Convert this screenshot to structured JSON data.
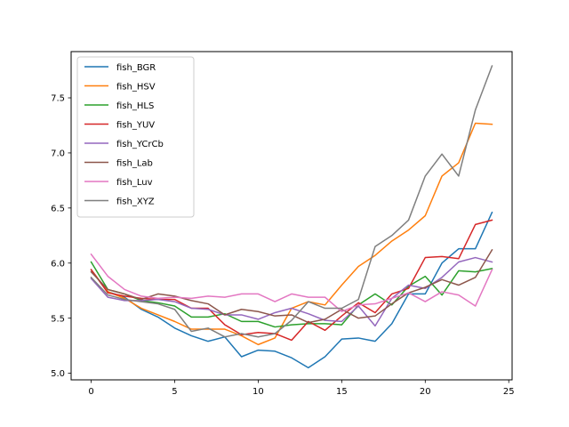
{
  "chart_data": {
    "type": "line",
    "title": "",
    "xlabel": "",
    "ylabel": "",
    "xlim": [
      -1.2,
      25.2
    ],
    "ylim": [
      4.94,
      7.92
    ],
    "xticks": [
      0,
      5,
      10,
      15,
      20,
      25
    ],
    "yticks": [
      5.0,
      5.5,
      6.0,
      6.5,
      7.0,
      7.5
    ],
    "xtick_labels": [
      "0",
      "5",
      "10",
      "15",
      "20",
      "25"
    ],
    "ytick_labels": [
      "5.0",
      "5.5",
      "6.0",
      "6.5",
      "7.0",
      "7.5"
    ],
    "grid": false,
    "legend_position": "top-left",
    "x": [
      0,
      1,
      2,
      3,
      4,
      5,
      6,
      7,
      8,
      9,
      10,
      11,
      12,
      13,
      14,
      15,
      16,
      17,
      18,
      19,
      20,
      21,
      22,
      23,
      24
    ],
    "series": [
      {
        "name": "fish_BGR",
        "color": "#1f77b4",
        "values": [
          5.94,
          5.74,
          5.69,
          5.58,
          5.51,
          5.41,
          5.34,
          5.29,
          5.33,
          5.15,
          5.21,
          5.2,
          5.14,
          5.05,
          5.15,
          5.31,
          5.32,
          5.29,
          5.45,
          5.72,
          5.72,
          6.0,
          6.13,
          6.13,
          6.46
        ]
      },
      {
        "name": "fish_HSV",
        "color": "#ff7f0e",
        "values": [
          5.94,
          5.74,
          5.68,
          5.59,
          5.53,
          5.47,
          5.4,
          5.4,
          5.4,
          5.34,
          5.26,
          5.32,
          5.59,
          5.65,
          5.62,
          5.8,
          5.97,
          6.07,
          6.2,
          6.3,
          6.43,
          6.79,
          6.91,
          7.27,
          7.26
        ]
      },
      {
        "name": "fish_HLS",
        "color": "#2ca02c",
        "values": [
          6.01,
          5.76,
          5.72,
          5.66,
          5.64,
          5.61,
          5.51,
          5.51,
          5.54,
          5.47,
          5.47,
          5.42,
          5.44,
          5.45,
          5.45,
          5.44,
          5.62,
          5.72,
          5.62,
          5.79,
          5.88,
          5.71,
          5.93,
          5.92,
          5.95
        ]
      },
      {
        "name": "fish_YUV",
        "color": "#d62728",
        "values": [
          5.94,
          5.73,
          5.7,
          5.68,
          5.67,
          5.67,
          5.59,
          5.59,
          5.44,
          5.35,
          5.37,
          5.36,
          5.3,
          5.47,
          5.39,
          5.52,
          5.64,
          5.55,
          5.72,
          5.77,
          6.05,
          6.06,
          6.04,
          6.35,
          6.39
        ]
      },
      {
        "name": "fish_YCrCb",
        "color": "#9467bd",
        "values": [
          5.86,
          5.69,
          5.66,
          5.66,
          5.67,
          5.65,
          5.59,
          5.58,
          5.53,
          5.53,
          5.49,
          5.55,
          5.59,
          5.54,
          5.48,
          5.47,
          5.61,
          5.43,
          5.68,
          5.8,
          5.77,
          5.87,
          6.01,
          6.05,
          6.01
        ]
      },
      {
        "name": "fish_Lab",
        "color": "#8c564b",
        "values": [
          5.92,
          5.76,
          5.72,
          5.67,
          5.72,
          5.7,
          5.66,
          5.63,
          5.53,
          5.58,
          5.56,
          5.52,
          5.53,
          5.46,
          5.49,
          5.58,
          5.5,
          5.52,
          5.63,
          5.73,
          5.78,
          5.85,
          5.8,
          5.87,
          6.12
        ]
      },
      {
        "name": "fish_Luv",
        "color": "#e377c2",
        "values": [
          6.08,
          5.88,
          5.76,
          5.7,
          5.68,
          5.69,
          5.68,
          5.7,
          5.69,
          5.72,
          5.72,
          5.65,
          5.72,
          5.69,
          5.69,
          5.56,
          5.62,
          5.63,
          5.68,
          5.73,
          5.65,
          5.74,
          5.71,
          5.61,
          5.94
        ]
      },
      {
        "name": "fish_XYZ",
        "color": "#7f7f7f",
        "values": [
          5.87,
          5.71,
          5.67,
          5.65,
          5.63,
          5.58,
          5.38,
          5.41,
          5.33,
          5.36,
          5.33,
          5.36,
          5.48,
          5.65,
          5.59,
          5.59,
          5.67,
          6.15,
          6.25,
          6.39,
          6.79,
          6.99,
          6.79,
          7.39,
          7.79
        ]
      }
    ]
  }
}
